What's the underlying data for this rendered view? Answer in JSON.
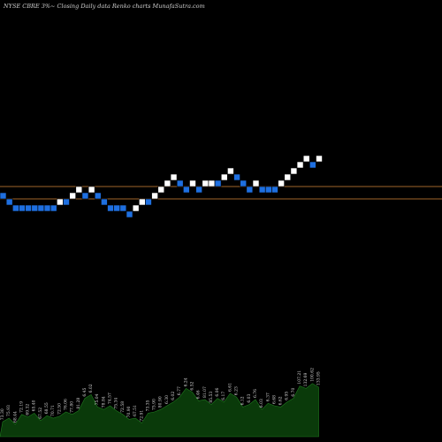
{
  "header": {
    "title": "NYSE CBRE 3%~  Closing Daily data  Renko  charts MunafaSutra.com"
  },
  "colors": {
    "background": "#000000",
    "up_brick": "#ffffff",
    "down_brick": "#1e6fe0",
    "level_line": "#a0652a",
    "volume_fill": "#0a3a0a",
    "volume_stroke": "#1f7a1f"
  },
  "chart_data": {
    "type": "renko",
    "title": "NYSE CBRE 3%~  Closing Daily data  Renko  charts MunafaSutra.com",
    "brick_size": "3%",
    "bricks": [
      {
        "level": 0,
        "dir": "down"
      },
      {
        "level": -1,
        "dir": "down"
      },
      {
        "level": -2,
        "dir": "down"
      },
      {
        "level": -2,
        "dir": "down"
      },
      {
        "level": -2,
        "dir": "down"
      },
      {
        "level": -2,
        "dir": "down"
      },
      {
        "level": -2,
        "dir": "down"
      },
      {
        "level": -2,
        "dir": "down"
      },
      {
        "level": -2,
        "dir": "down"
      },
      {
        "level": -1,
        "dir": "up"
      },
      {
        "level": -1,
        "dir": "down"
      },
      {
        "level": 0,
        "dir": "up"
      },
      {
        "level": 1,
        "dir": "up"
      },
      {
        "level": 0,
        "dir": "down"
      },
      {
        "level": 1,
        "dir": "up"
      },
      {
        "level": 0,
        "dir": "down"
      },
      {
        "level": -1,
        "dir": "down"
      },
      {
        "level": -2,
        "dir": "down"
      },
      {
        "level": -2,
        "dir": "down"
      },
      {
        "level": -2,
        "dir": "down"
      },
      {
        "level": -3,
        "dir": "down"
      },
      {
        "level": -2,
        "dir": "up"
      },
      {
        "level": -1,
        "dir": "up"
      },
      {
        "level": -1,
        "dir": "down"
      },
      {
        "level": 0,
        "dir": "up"
      },
      {
        "level": 1,
        "dir": "up"
      },
      {
        "level": 2,
        "dir": "up"
      },
      {
        "level": 3,
        "dir": "up"
      },
      {
        "level": 2,
        "dir": "down"
      },
      {
        "level": 1,
        "dir": "down"
      },
      {
        "level": 2,
        "dir": "up"
      },
      {
        "level": 1,
        "dir": "down"
      },
      {
        "level": 2,
        "dir": "up"
      },
      {
        "level": 2,
        "dir": "up"
      },
      {
        "level": 2,
        "dir": "down"
      },
      {
        "level": 3,
        "dir": "up"
      },
      {
        "level": 4,
        "dir": "up"
      },
      {
        "level": 3,
        "dir": "down"
      },
      {
        "level": 2,
        "dir": "down"
      },
      {
        "level": 1,
        "dir": "down"
      },
      {
        "level": 2,
        "dir": "up"
      },
      {
        "level": 1,
        "dir": "down"
      },
      {
        "level": 1,
        "dir": "down"
      },
      {
        "level": 1,
        "dir": "down"
      },
      {
        "level": 2,
        "dir": "up"
      },
      {
        "level": 3,
        "dir": "up"
      },
      {
        "level": 4,
        "dir": "up"
      },
      {
        "level": 5,
        "dir": "up"
      },
      {
        "level": 6,
        "dir": "up"
      },
      {
        "level": 5,
        "dir": "down"
      },
      {
        "level": 6,
        "dir": "up"
      }
    ],
    "levels": [
      {
        "name": "upper-level",
        "level": 2
      },
      {
        "name": "lower-level",
        "level": 0
      }
    ],
    "volume": [
      24,
      30,
      20,
      36,
      32,
      38,
      26,
      34,
      30,
      33,
      40,
      36,
      42,
      62,
      68,
      48,
      44,
      50,
      42,
      36,
      28,
      30,
      22,
      38,
      40,
      44,
      50,
      56,
      64,
      78,
      72,
      58,
      60,
      52,
      62,
      56,
      70,
      64,
      48,
      52,
      60,
      44,
      54,
      50,
      48,
      56,
      62,
      82,
      78,
      86,
      80
    ],
    "volume_labels": [
      "73.30",
      "75.93",
      "68.44",
      "72.19",
      "69.32",
      "65.40",
      "67.52",
      "68.55",
      "70.71",
      "72.50",
      "76.06",
      "77.80",
      "81.28",
      "6.45",
      "6.02",
      "75.04",
      "78.84",
      "74.57",
      "75.34",
      "72.58",
      "70.90",
      "67.51",
      "72.91",
      "73.35",
      "75.90",
      "80.90",
      "6.30",
      "6.02",
      "6.77",
      "6.24",
      "6.52",
      "6.46",
      "81.07",
      "85.53",
      "6.06",
      "6.17",
      "6.61",
      "6.23",
      "6.12",
      "6.03",
      "6.76",
      "6.03",
      "6.37",
      "6.68",
      "6.62",
      "6.95",
      "6.70",
      "107.21",
      "132.69",
      "100.62",
      "133.95"
    ]
  }
}
